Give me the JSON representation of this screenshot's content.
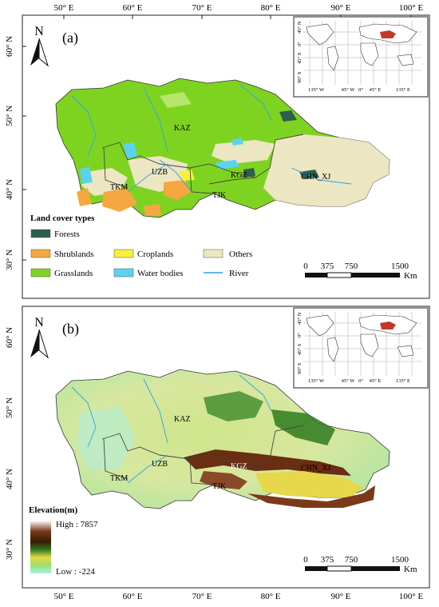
{
  "panel_a": {
    "label": "(a)",
    "north": "N",
    "lon_ticks": [
      "50° E",
      "60° E",
      "70° E",
      "80° E",
      "90° E",
      "100° E"
    ],
    "lat_ticks": [
      "60° N",
      "50° N",
      "40° N",
      "30° N"
    ],
    "countries": [
      "KAZ",
      "UZB",
      "KGZ",
      "TKM",
      "TJK",
      "CHN_XJ"
    ],
    "legend_title": "Land cover types",
    "legend": [
      {
        "label": "Forests",
        "color": "#2e5e4e"
      },
      {
        "label": "Shrublands",
        "color": "#f5a742"
      },
      {
        "label": "Grasslands",
        "color": "#7ed321"
      },
      {
        "label": "Croplands",
        "color": "#f7f03a"
      },
      {
        "label": "Water bodies",
        "color": "#5bd3f0"
      },
      {
        "label": "Others",
        "color": "#ece6c2"
      },
      {
        "label": "River",
        "color": "#2aa3e8"
      }
    ],
    "scale": {
      "ticks": [
        "0",
        "375",
        "750",
        "1500"
      ],
      "unit": "Km"
    },
    "inset_lat": [
      "45° N",
      "0°",
      "45° S",
      "90° S"
    ],
    "inset_lon": [
      "135° W",
      "45° W",
      "0°",
      "45° E",
      "135° E"
    ]
  },
  "panel_b": {
    "label": "(b)",
    "north": "N",
    "lon_ticks": [
      "50° E",
      "60° E",
      "70° E",
      "80° E",
      "90° E",
      "100° E"
    ],
    "lat_ticks": [
      "60° N",
      "50° N",
      "40° N",
      "30° N"
    ],
    "countries": [
      "KAZ",
      "UZB",
      "KGZ",
      "TKM",
      "TJK",
      "CHN_XJ"
    ],
    "legend_title": "Elevation(m)",
    "high_label": "High : 7857",
    "low_label": "Low : -224",
    "scale": {
      "ticks": [
        "0",
        "375",
        "750",
        "1500"
      ],
      "unit": "Km"
    },
    "inset_lat": [
      "45° N",
      "0°",
      "45° S",
      "90° S"
    ],
    "inset_lon": [
      "135° W",
      "45° W",
      "0°",
      "45° E",
      "135° E"
    ]
  },
  "colors": {
    "grassland": "#7ed321",
    "others": "#ece6c2",
    "highlight": "#c0392b",
    "river": "#2aa3e8"
  }
}
